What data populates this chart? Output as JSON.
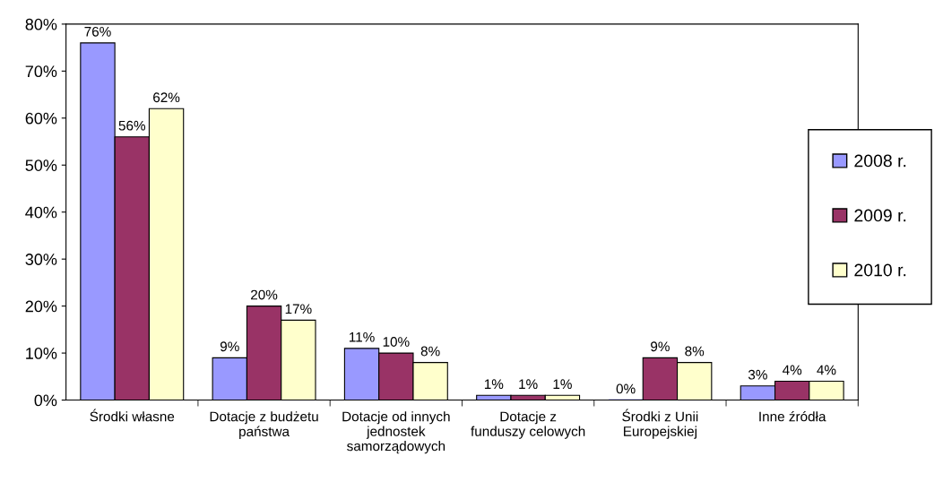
{
  "chart_data": {
    "type": "bar",
    "categories": [
      "Środki własne",
      "Dotacje z budżetu państwa",
      "Dotacje od innych jednostek samorządowych",
      "Dotacje z funduszy celowych",
      "Środki z Unii Europejskiej",
      "Inne źródła"
    ],
    "series": [
      {
        "name": "2008 r.",
        "color": "#9999ff",
        "values": [
          76,
          9,
          11,
          1,
          0,
          3
        ],
        "value_labels": [
          "76%",
          "9%",
          "11%",
          "1%",
          "0%",
          "3%"
        ]
      },
      {
        "name": "2009 r.",
        "color": "#993366",
        "values": [
          56,
          20,
          10,
          1,
          9,
          4
        ],
        "value_labels": [
          "56%",
          "20%",
          "10%",
          "1%",
          "9%",
          "4%"
        ]
      },
      {
        "name": "2010 r.",
        "color": "#ffffcc",
        "values": [
          62,
          17,
          8,
          1,
          8,
          4
        ],
        "value_labels": [
          "62%",
          "17%",
          "8%",
          "1%",
          "8%",
          "4%"
        ]
      }
    ],
    "ylim": [
      0,
      80
    ],
    "yticks": [
      {
        "value": 0,
        "label": "0%"
      },
      {
        "value": 10,
        "label": "10%"
      },
      {
        "value": 20,
        "label": "20%"
      },
      {
        "value": 30,
        "label": "30%"
      },
      {
        "value": 40,
        "label": "40%"
      },
      {
        "value": 50,
        "label": "50%"
      },
      {
        "value": 60,
        "label": "60%"
      },
      {
        "value": 70,
        "label": "70%"
      },
      {
        "value": 80,
        "label": "80%"
      }
    ],
    "grid": false,
    "legend": "right"
  }
}
